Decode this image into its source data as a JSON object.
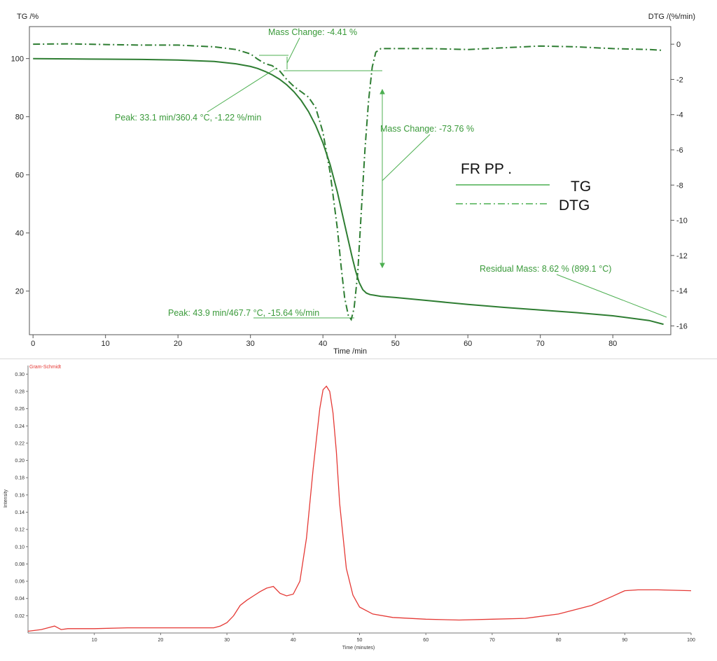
{
  "chart_data": [
    {
      "type": "line",
      "xlabel": "Time /min",
      "ylabel": "TG /%",
      "y2label": "DTG /(%/min)",
      "xlim": [
        -0.5,
        88
      ],
      "ylim": [
        5,
        111
      ],
      "y2lim": [
        -16.5,
        1.0
      ],
      "xticks": [
        0,
        10,
        20,
        30,
        40,
        50,
        60,
        70,
        80
      ],
      "yticks": [
        20,
        40,
        60,
        80,
        100
      ],
      "y2ticks": [
        0,
        -2,
        -4,
        -6,
        -8,
        -10,
        -12,
        -14,
        -16
      ],
      "grid": false,
      "legend": {
        "title": "FR PP .",
        "placement": "right",
        "entries": [
          {
            "label": "TG",
            "style": "solid"
          },
          {
            "label": "DTG",
            "style": "dash-dot"
          }
        ]
      },
      "series": [
        {
          "name": "TG",
          "axis": "left",
          "color": "#2e7d32",
          "x": [
            0,
            5,
            10,
            15,
            20,
            25,
            28,
            30,
            31,
            32,
            33,
            34,
            35,
            36,
            37,
            38,
            39,
            40,
            41,
            42,
            43,
            44,
            44.5,
            45,
            45.5,
            46,
            46.5,
            47,
            48,
            50,
            55,
            60,
            65,
            70,
            75,
            80,
            85,
            87
          ],
          "y": [
            100,
            99.9,
            99.8,
            99.7,
            99.5,
            99.0,
            98.2,
            97.3,
            96.6,
            95.6,
            94.4,
            92.9,
            91.0,
            88.6,
            85.6,
            81.8,
            77.0,
            71.0,
            63.5,
            54.0,
            43.0,
            32.0,
            27.0,
            23.0,
            20.5,
            19.3,
            18.8,
            18.6,
            18.2,
            17.8,
            16.6,
            15.4,
            14.4,
            13.5,
            12.6,
            11.5,
            9.9,
            8.6
          ]
        },
        {
          "name": "DTG",
          "axis": "right",
          "color": "#2e7d32",
          "x": [
            0,
            5,
            10,
            15,
            20,
            25,
            28,
            30,
            31,
            32,
            33,
            34,
            35,
            36,
            37,
            38,
            39,
            40,
            41,
            42,
            42.5,
            43,
            43.5,
            43.9,
            44.3,
            44.8,
            45.3,
            45.8,
            46.3,
            46.8,
            47.3,
            48,
            50,
            55,
            60,
            65,
            70,
            75,
            80,
            85,
            87
          ],
          "y": [
            0,
            0.02,
            -0.02,
            -0.05,
            -0.05,
            -0.15,
            -0.3,
            -0.55,
            -0.85,
            -1.1,
            -1.22,
            -1.5,
            -2.0,
            -2.4,
            -2.7,
            -3.0,
            -3.6,
            -5.0,
            -7.3,
            -10.5,
            -12.6,
            -14.4,
            -15.4,
            -15.64,
            -15.0,
            -13.0,
            -9.5,
            -6.0,
            -3.2,
            -1.3,
            -0.45,
            -0.25,
            -0.25,
            -0.25,
            -0.3,
            -0.2,
            -0.1,
            -0.15,
            -0.25,
            -0.3,
            -0.35
          ]
        }
      ],
      "annotations": [
        {
          "text": "Mass Change: -4.41 %"
        },
        {
          "text": "Peak: 33.1 min/360.4 °C, -1.22 %/min"
        },
        {
          "text": "Mass Change: -73.76 %"
        },
        {
          "text": "Peak: 43.9 min/467.7 °C, -15.64 %/min"
        },
        {
          "text": "Residual Mass: 8.62 % (899.1 °C)"
        }
      ]
    },
    {
      "type": "line",
      "title": "Gram-Schmidt",
      "xlabel": "Time (minutes)",
      "ylabel": "Intensity",
      "xlim": [
        0,
        100
      ],
      "ylim": [
        0,
        0.31
      ],
      "xticks": [
        10,
        20,
        30,
        40,
        50,
        60,
        70,
        80,
        90,
        100
      ],
      "xtick_labels": [
        "10",
        "20",
        "30",
        "40",
        "50",
        "60",
        "70",
        "80",
        "90",
        "100"
      ],
      "yticks": [
        0.02,
        0.04,
        0.06,
        0.08,
        0.1,
        0.12,
        0.14,
        0.16,
        0.18,
        0.2,
        0.22,
        0.24,
        0.26,
        0.28,
        0.3
      ],
      "ytick_labels": [
        "0.02",
        "0.04",
        "0.06",
        "0.08",
        "0.10",
        "0.12",
        "0.14",
        "0.16",
        "0.18",
        "0.20",
        "0.22",
        "0.24",
        "0.26",
        "0.28",
        "0.30"
      ],
      "grid": false,
      "series": [
        {
          "color": "#e53935",
          "x": [
            0,
            2,
            3,
            4,
            5,
            6,
            8,
            10,
            15,
            20,
            25,
            28,
            29,
            30,
            31,
            32,
            33,
            34,
            35,
            36,
            37,
            38,
            39,
            40,
            41,
            42,
            43,
            44,
            44.5,
            45,
            45.5,
            46,
            46.5,
            47,
            48,
            49,
            50,
            52,
            55,
            60,
            65,
            70,
            75,
            80,
            85,
            88,
            90,
            92,
            95,
            100
          ],
          "y": [
            0.002,
            0.004,
            0.006,
            0.008,
            0.004,
            0.005,
            0.005,
            0.005,
            0.006,
            0.006,
            0.006,
            0.006,
            0.008,
            0.012,
            0.02,
            0.032,
            0.038,
            0.043,
            0.048,
            0.052,
            0.054,
            0.046,
            0.043,
            0.045,
            0.06,
            0.11,
            0.19,
            0.26,
            0.282,
            0.286,
            0.28,
            0.255,
            0.21,
            0.15,
            0.075,
            0.044,
            0.03,
            0.022,
            0.018,
            0.016,
            0.015,
            0.016,
            0.017,
            0.022,
            0.032,
            0.042,
            0.049,
            0.05,
            0.05,
            0.049
          ]
        }
      ]
    }
  ]
}
